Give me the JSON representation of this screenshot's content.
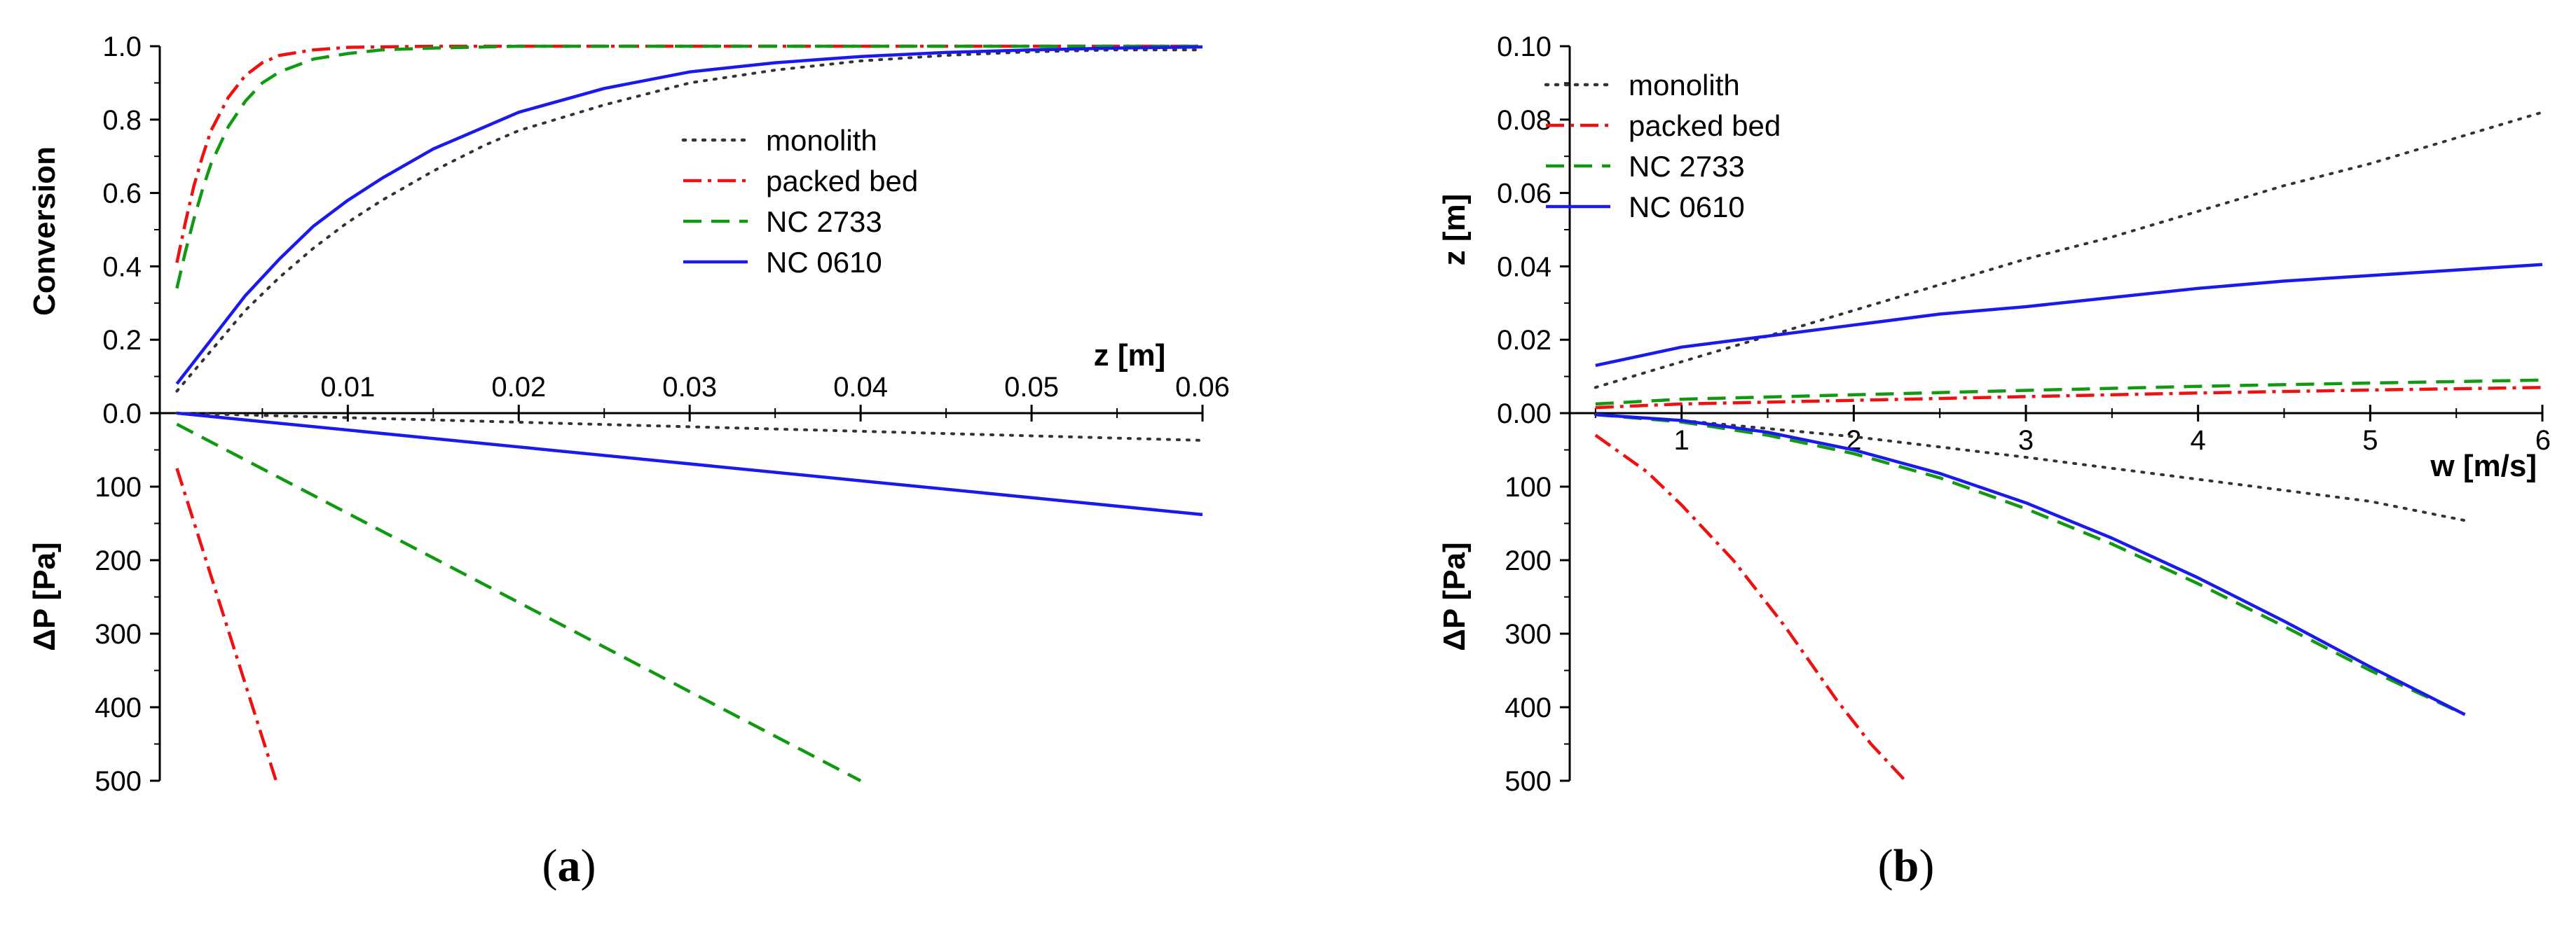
{
  "colors": {
    "monolith": "#333333",
    "packed_bed": "#ee1111",
    "nc2733": "#119911",
    "nc0610": "#1a1aee",
    "axis": "#000000"
  },
  "chart_data": [
    {
      "panel": "a",
      "panel_label_open": "(",
      "panel_label_letter": "a",
      "panel_label_close": ")",
      "type": "line",
      "x_label": "z [m]",
      "x_range": [
        -0.001,
        0.06
      ],
      "x_ticks": [
        0.01,
        0.02,
        0.03,
        0.04,
        0.05,
        0.06
      ],
      "x_tick_labels": [
        "0.01",
        "0.02",
        "0.03",
        "0.04",
        "0.05",
        "0.06"
      ],
      "top_axis": {
        "label": "Conversion",
        "range": [
          0,
          1.0
        ],
        "ticks": [
          0.0,
          0.2,
          0.4,
          0.6,
          0.8,
          1.0
        ],
        "tick_labels": [
          "0.0",
          "0.2",
          "0.4",
          "0.6",
          "0.8",
          "1.0"
        ]
      },
      "bottom_axis": {
        "label": "ΔP [Pa]",
        "range": [
          0,
          500
        ],
        "ticks": [
          100,
          200,
          300,
          400,
          500
        ],
        "tick_labels": [
          "100",
          "200",
          "300",
          "400",
          "500"
        ]
      },
      "legend": {
        "position": "center-right",
        "entries": [
          "monolith",
          "packed bed",
          "NC 2733",
          "NC 0610"
        ]
      },
      "series": [
        {
          "name": "monolith",
          "style": "dotted",
          "color_key": "monolith",
          "axis": "top",
          "x": [
            0.0,
            0.002,
            0.004,
            0.006,
            0.008,
            0.01,
            0.012,
            0.015,
            0.018,
            0.02,
            0.025,
            0.03,
            0.035,
            0.04,
            0.045,
            0.05,
            0.055,
            0.06
          ],
          "y": [
            0.06,
            0.17,
            0.28,
            0.37,
            0.45,
            0.52,
            0.58,
            0.66,
            0.73,
            0.77,
            0.84,
            0.9,
            0.935,
            0.96,
            0.975,
            0.985,
            0.99,
            0.99
          ]
        },
        {
          "name": "packed bed",
          "style": "dashdot",
          "color_key": "packed_bed",
          "axis": "top",
          "x": [
            0.0,
            0.0005,
            0.001,
            0.0015,
            0.002,
            0.003,
            0.004,
            0.005,
            0.006,
            0.008,
            0.01,
            0.015,
            0.02,
            0.03,
            0.04,
            0.05,
            0.06
          ],
          "y": [
            0.41,
            0.52,
            0.62,
            0.7,
            0.77,
            0.86,
            0.92,
            0.955,
            0.975,
            0.99,
            0.997,
            1.0,
            1.0,
            1.0,
            1.0,
            1.0,
            1.0
          ]
        },
        {
          "name": "NC 2733",
          "style": "dashed",
          "color_key": "nc2733",
          "axis": "top",
          "x": [
            0.0,
            0.0005,
            0.001,
            0.0015,
            0.002,
            0.003,
            0.004,
            0.005,
            0.006,
            0.008,
            0.01,
            0.012,
            0.015,
            0.02,
            0.03,
            0.04,
            0.05,
            0.06
          ],
          "y": [
            0.34,
            0.44,
            0.53,
            0.61,
            0.68,
            0.78,
            0.85,
            0.9,
            0.93,
            0.965,
            0.98,
            0.99,
            0.995,
            1.0,
            1.0,
            1.0,
            1.0,
            1.0
          ]
        },
        {
          "name": "NC 0610",
          "style": "solid",
          "color_key": "nc0610",
          "axis": "top",
          "x": [
            0.0,
            0.002,
            0.004,
            0.006,
            0.008,
            0.01,
            0.012,
            0.015,
            0.018,
            0.02,
            0.025,
            0.03,
            0.035,
            0.04,
            0.045,
            0.05,
            0.055,
            0.06
          ],
          "y": [
            0.08,
            0.2,
            0.32,
            0.42,
            0.51,
            0.58,
            0.64,
            0.72,
            0.78,
            0.82,
            0.885,
            0.93,
            0.955,
            0.972,
            0.983,
            0.99,
            0.995,
            0.998
          ]
        },
        {
          "name": "monolith",
          "style": "dotted",
          "color_key": "monolith",
          "axis": "bottom",
          "x": [
            0.0,
            0.06
          ],
          "y": [
            0,
            37
          ]
        },
        {
          "name": "packed bed",
          "style": "dashdot",
          "color_key": "packed_bed",
          "axis": "bottom",
          "x": [
            0.0,
            0.0058
          ],
          "y": [
            75,
            500
          ]
        },
        {
          "name": "NC 2733",
          "style": "dashed",
          "color_key": "nc2733",
          "axis": "bottom",
          "x": [
            0.0,
            0.04
          ],
          "y": [
            15,
            500
          ]
        },
        {
          "name": "NC 0610",
          "style": "solid",
          "color_key": "nc0610",
          "axis": "bottom",
          "x": [
            0.0,
            0.06
          ],
          "y": [
            0,
            138
          ]
        }
      ]
    },
    {
      "panel": "b",
      "panel_label_open": "(",
      "panel_label_letter": "b",
      "panel_label_close": ")",
      "type": "line",
      "x_label": "w [m/s]",
      "x_range": [
        0.35,
        6.0
      ],
      "x_ticks": [
        1,
        2,
        3,
        4,
        5,
        6
      ],
      "x_tick_labels": [
        "1",
        "2",
        "3",
        "4",
        "5",
        "6"
      ],
      "top_axis": {
        "label": "z [m]",
        "range": [
          0,
          0.1
        ],
        "ticks": [
          0.0,
          0.02,
          0.04,
          0.06,
          0.08,
          0.1
        ],
        "tick_labels": [
          "0.00",
          "0.02",
          "0.04",
          "0.06",
          "0.08",
          "0.10"
        ]
      },
      "bottom_axis": {
        "label": "ΔP [Pa]",
        "range": [
          0,
          500
        ],
        "ticks": [
          100,
          200,
          300,
          400,
          500
        ],
        "tick_labels": [
          "100",
          "200",
          "300",
          "400",
          "500"
        ]
      },
      "legend": {
        "position": "top-left",
        "entries": [
          "monolith",
          "packed bed",
          "NC 2733",
          "NC 0610"
        ]
      },
      "series": [
        {
          "name": "monolith",
          "style": "dotted",
          "color_key": "monolith",
          "axis": "top",
          "x": [
            0.5,
            1,
            1.5,
            2,
            2.5,
            3,
            3.5,
            4,
            4.5,
            5,
            5.5,
            6
          ],
          "y": [
            0.007,
            0.014,
            0.021,
            0.028,
            0.035,
            0.042,
            0.048,
            0.055,
            0.062,
            0.068,
            0.075,
            0.082
          ]
        },
        {
          "name": "packed bed",
          "style": "dashdot",
          "color_key": "packed_bed",
          "axis": "top",
          "x": [
            0.5,
            1,
            2,
            3,
            4,
            5,
            6
          ],
          "y": [
            0.0015,
            0.0025,
            0.0035,
            0.0045,
            0.0055,
            0.0063,
            0.007
          ]
        },
        {
          "name": "NC 2733",
          "style": "dashed",
          "color_key": "nc2733",
          "axis": "top",
          "x": [
            0.5,
            1,
            2,
            3,
            4,
            5,
            6
          ],
          "y": [
            0.0025,
            0.0038,
            0.005,
            0.0062,
            0.0073,
            0.0082,
            0.009
          ]
        },
        {
          "name": "NC 0610",
          "style": "solid",
          "color_key": "nc0610",
          "axis": "top",
          "x": [
            0.5,
            1,
            1.5,
            2,
            2.5,
            3,
            3.5,
            4,
            4.5,
            5,
            5.5,
            6
          ],
          "y": [
            0.013,
            0.018,
            0.021,
            0.024,
            0.027,
            0.029,
            0.0315,
            0.034,
            0.036,
            0.0375,
            0.039,
            0.0405
          ]
        },
        {
          "name": "monolith",
          "style": "dotted",
          "color_key": "monolith",
          "axis": "bottom",
          "x": [
            0.5,
            1,
            2,
            3,
            4,
            5,
            5.55
          ],
          "y": [
            2,
            10,
            32,
            60,
            90,
            120,
            146
          ]
        },
        {
          "name": "packed bed",
          "style": "dashdot",
          "color_key": "packed_bed",
          "axis": "bottom",
          "x": [
            0.5,
            0.8,
            1,
            1.3,
            1.6,
            1.9,
            2.1,
            2.3
          ],
          "y": [
            30,
            80,
            125,
            200,
            290,
            390,
            450,
            500
          ]
        },
        {
          "name": "NC 2733",
          "style": "dashed",
          "color_key": "nc2733",
          "axis": "bottom",
          "x": [
            0.5,
            1,
            1.5,
            2,
            2.5,
            3,
            3.5,
            4,
            4.5,
            5,
            5.55
          ],
          "y": [
            2,
            12,
            30,
            55,
            88,
            130,
            178,
            232,
            290,
            350,
            410
          ]
        },
        {
          "name": "NC 0610",
          "style": "solid",
          "color_key": "nc0610",
          "axis": "bottom",
          "x": [
            0.5,
            1,
            1.5,
            2,
            2.5,
            3,
            3.5,
            4,
            4.5,
            5,
            5.55
          ],
          "y": [
            2,
            10,
            26,
            50,
            82,
            122,
            170,
            224,
            283,
            345,
            410
          ]
        }
      ]
    }
  ]
}
